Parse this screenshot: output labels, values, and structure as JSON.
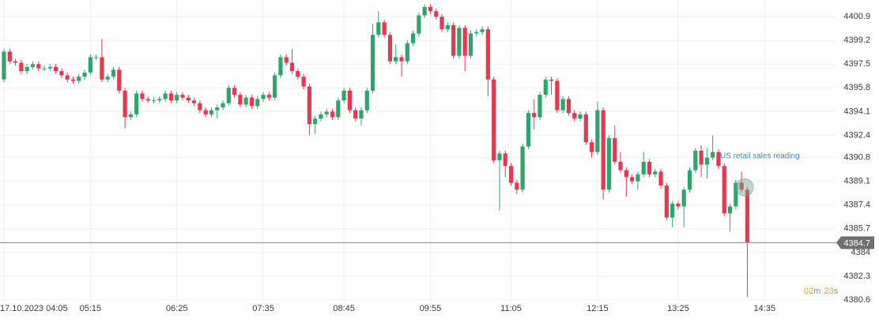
{
  "chart_data": {
    "type": "candlestick",
    "categories": [
      "17.10.2023 04:05",
      null,
      null,
      null,
      null,
      null,
      null,
      null,
      null,
      null,
      null,
      null,
      null,
      null,
      null,
      "05:15",
      null,
      null,
      null,
      null,
      null,
      null,
      null,
      null,
      null,
      null,
      null,
      null,
      null,
      null,
      "06:25",
      null,
      null,
      null,
      null,
      null,
      null,
      null,
      null,
      null,
      null,
      null,
      null,
      null,
      null,
      "07:35",
      null,
      null,
      null,
      null,
      null,
      null,
      null,
      null,
      null,
      null,
      null,
      null,
      null,
      "08:45",
      null,
      null,
      null,
      null,
      null,
      null,
      null,
      null,
      null,
      null,
      null,
      null,
      null,
      null,
      "09:55",
      null,
      null,
      null,
      null,
      null,
      null,
      null,
      null,
      null,
      null,
      null,
      null,
      null,
      "11:05",
      null,
      null,
      null,
      null,
      null,
      null,
      null,
      null,
      null,
      null,
      null,
      null,
      null,
      null,
      "12:15",
      null,
      null,
      null,
      null,
      null,
      null,
      null,
      null,
      null,
      null,
      null,
      null,
      null,
      "13:25",
      null,
      null,
      null,
      null,
      null,
      null,
      null,
      null,
      null,
      null,
      null,
      null,
      null,
      null,
      "14:35"
    ],
    "open": [
      4396.4,
      4398.4,
      4397.7,
      4397.6,
      4397.0,
      4397.3,
      4397.5,
      4397.2,
      4397.2,
      4397.3,
      4397.0,
      4396.7,
      4396.4,
      4396.3,
      4396.6,
      4396.9,
      4398.0,
      4398.0,
      4396.4,
      4396.6,
      4397.1,
      4395.6,
      4393.7,
      4393.9,
      4395.4,
      4395.0,
      4394.9,
      4394.9,
      4395.0,
      4395.4,
      4394.9,
      4395.3,
      4395.1,
      4394.9,
      4394.7,
      4394.2,
      4393.9,
      4394.2,
      4394.4,
      4394.7,
      4395.8,
      4395.3,
      4394.6,
      4395.1,
      4394.5,
      4395.0,
      4395.3,
      4395.1,
      4396.7,
      4398.0,
      4397.6,
      4397.0,
      4396.6,
      4395.9,
      4393.2,
      4393.6,
      4393.9,
      4394.1,
      4393.7,
      4394.9,
      4395.6,
      4394.2,
      4393.6,
      4394.2,
      4395.6,
      4399.6,
      4400.5,
      4399.6,
      4397.7,
      4398.0,
      4397.7,
      4399.0,
      4399.7,
      4401.0,
      4401.6,
      4401.3,
      4400.9,
      4400.0,
      4400.3,
      4398.1,
      4400.1,
      4398.1,
      4399.7,
      4399.8,
      4400.0,
      4396.4,
      4390.6,
      4391.1,
      4390.2,
      4389.0,
      4388.5,
      4391.6,
      4394.0,
      4393.7,
      4395.3,
      4396.4,
      4396.3,
      4394.2,
      4395.0,
      4394.0,
      4393.6,
      4393.9,
      4391.9,
      4391.2,
      4394.2,
      4388.5,
      4392.2,
      4390.5,
      4389.9,
      4389.4,
      4389.1,
      4389.6,
      4390.5,
      4389.6,
      4389.8,
      4388.8,
      4386.5,
      4387.5,
      4387.3,
      4388.5,
      4389.9,
      4391.3,
      4390.3,
      4390.8,
      4391.2,
      4390.2,
      4386.8,
      4387.3,
      4389.0,
      4388.5,
      null,
      null,
      null
    ],
    "high": [
      4398.6,
      4398.6,
      4397.9,
      4397.8,
      4397.5,
      4397.7,
      4397.7,
      4397.4,
      4397.5,
      4397.5,
      4397.2,
      4396.9,
      4396.6,
      4396.8,
      4397.1,
      4398.2,
      4398.2,
      4399.3,
      4396.8,
      4397.3,
      4397.3,
      4395.8,
      4394.1,
      4395.6,
      4395.6,
      4395.2,
      4395.1,
      4395.2,
      4395.6,
      4395.6,
      4395.5,
      4395.5,
      4395.3,
      4395.1,
      4394.9,
      4394.4,
      4394.4,
      4394.6,
      4394.9,
      4396.0,
      4396.0,
      4395.5,
      4395.3,
      4395.3,
      4395.2,
      4395.5,
      4395.5,
      4396.9,
      4398.2,
      4398.2,
      4398.6,
      4397.2,
      4396.8,
      4396.1,
      4393.8,
      4394.1,
      4394.3,
      4394.3,
      4395.1,
      4395.8,
      4395.8,
      4394.4,
      4394.4,
      4395.8,
      4400.4,
      4401.3,
      4400.7,
      4399.8,
      4398.9,
      4398.2,
      4399.2,
      4399.9,
      4401.2,
      4401.8,
      4401.8,
      4401.5,
      4401.1,
      4400.5,
      4400.5,
      4400.3,
      4400.3,
      4399.9,
      4400.0,
      4400.2,
      4400.2,
      4396.6,
      4391.3,
      4391.3,
      4390.4,
      4389.2,
      4391.8,
      4394.2,
      4395.0,
      4395.5,
      4396.6,
      4396.6,
      4396.5,
      4395.2,
      4395.2,
      4394.2,
      4394.1,
      4394.1,
      4392.1,
      4394.8,
      4394.4,
      4392.4,
      4393.1,
      4391.2,
      4390.1,
      4389.6,
      4389.8,
      4391.2,
      4390.7,
      4390.0,
      4390.0,
      4389.0,
      4387.7,
      4387.7,
      4388.7,
      4390.1,
      4391.5,
      4391.7,
      4391.5,
      4392.4,
      4391.4,
      4390.4,
      4387.5,
      4389.2,
      4389.8,
      4388.7,
      null,
      null,
      null
    ],
    "low": [
      4396.2,
      4397.5,
      4397.4,
      4396.8,
      4396.8,
      4397.1,
      4397.0,
      4397.0,
      4397.0,
      4396.8,
      4396.5,
      4396.2,
      4396.1,
      4396.1,
      4396.4,
      4396.7,
      4397.8,
      4396.2,
      4396.2,
      4396.4,
      4395.4,
      4392.9,
      4393.5,
      4393.7,
      4394.8,
      4394.7,
      4394.7,
      4394.7,
      4394.8,
      4394.7,
      4394.7,
      4394.9,
      4394.7,
      4394.5,
      4394.0,
      4393.7,
      4393.7,
      4393.6,
      4394.2,
      4394.5,
      4395.1,
      4394.4,
      4394.4,
      4394.3,
      4394.3,
      4394.8,
      4394.9,
      4394.9,
      4396.5,
      4397.4,
      4396.8,
      4396.4,
      4395.7,
      4392.4,
      4392.5,
      4393.4,
      4393.7,
      4393.5,
      4393.5,
      4394.7,
      4394.0,
      4393.4,
      4393.1,
      4394.0,
      4395.4,
      4399.4,
      4399.4,
      4397.5,
      4397.5,
      4396.6,
      4397.5,
      4398.8,
      4399.5,
      4400.8,
      4401.1,
      4400.7,
      4399.8,
      4399.8,
      4397.9,
      4397.9,
      4397.0,
      4397.9,
      4399.5,
      4399.6,
      4395.2,
      4390.4,
      4387.0,
      4389.4,
      4388.8,
      4388.2,
      4388.3,
      4391.4,
      4392.8,
      4393.5,
      4395.1,
      4395.3,
      4394.0,
      4394.0,
      4393.8,
      4393.4,
      4393.4,
      4391.7,
      4390.8,
      4391.0,
      4387.8,
      4388.3,
      4390.3,
      4389.7,
      4388.0,
      4388.9,
      4388.5,
      4389.4,
      4389.4,
      4389.4,
      4388.6,
      4386.3,
      4385.8,
      4387.1,
      4385.8,
      4388.3,
      4389.7,
      4389.4,
      4389.3,
      4390.6,
      4390.0,
      4386.6,
      4385.5,
      4387.1,
      4388.3,
      4380.8,
      null,
      null,
      null
    ],
    "close": [
      4398.4,
      4397.7,
      4397.6,
      4397.0,
      4397.3,
      4397.5,
      4397.2,
      4397.2,
      4397.3,
      4397.0,
      4396.7,
      4396.4,
      4396.3,
      4396.6,
      4396.9,
      4398.0,
      4398.0,
      4396.4,
      4396.6,
      4397.1,
      4395.6,
      4393.7,
      4393.9,
      4395.4,
      4395.0,
      4394.9,
      4394.9,
      4395.0,
      4395.4,
      4394.9,
      4395.3,
      4395.1,
      4394.9,
      4394.7,
      4394.2,
      4393.9,
      4394.2,
      4394.4,
      4394.7,
      4395.8,
      4395.3,
      4394.6,
      4395.1,
      4394.5,
      4395.0,
      4395.3,
      4395.1,
      4396.7,
      4398.0,
      4397.6,
      4397.0,
      4396.6,
      4395.9,
      4393.2,
      4393.6,
      4393.9,
      4394.1,
      4393.7,
      4394.9,
      4395.6,
      4394.2,
      4393.6,
      4394.2,
      4395.6,
      4399.6,
      4400.5,
      4399.6,
      4397.7,
      4398.0,
      4397.7,
      4399.0,
      4399.7,
      4401.0,
      4401.6,
      4401.3,
      4400.9,
      4400.0,
      4400.3,
      4398.1,
      4400.1,
      4398.1,
      4399.7,
      4399.8,
      4400.0,
      4396.4,
      4390.6,
      4391.1,
      4390.2,
      4389.0,
      4388.5,
      4391.6,
      4394.0,
      4393.7,
      4395.3,
      4396.4,
      4396.3,
      4394.2,
      4395.0,
      4394.0,
      4393.6,
      4393.9,
      4391.9,
      4391.2,
      4394.2,
      4388.5,
      4392.2,
      4390.5,
      4389.9,
      4389.4,
      4389.1,
      4389.6,
      4390.5,
      4389.6,
      4389.8,
      4388.8,
      4386.5,
      4387.5,
      4387.3,
      4388.5,
      4389.9,
      4391.3,
      4390.3,
      4390.8,
      4391.2,
      4390.2,
      4386.8,
      4387.3,
      4389.0,
      4388.5,
      4384.7,
      null,
      null,
      null
    ],
    "up_color": "#2fa56e",
    "down_color": "#e9374f",
    "ylim": [
      4380.2,
      4402.1
    ],
    "yticks": [
      4380.6,
      4382.3,
      4384.0,
      4385.7,
      4387.4,
      4389.1,
      4390.8,
      4392.4,
      4394.1,
      4395.8,
      4397.5,
      4399.2,
      4400.9
    ],
    "grid": true,
    "last_price": 4384.7,
    "annotation": "US retail sales reading",
    "countdown": {
      "minutes": "02",
      "minutes_unit": "m",
      "seconds": "23",
      "seconds_unit": "s"
    }
  }
}
